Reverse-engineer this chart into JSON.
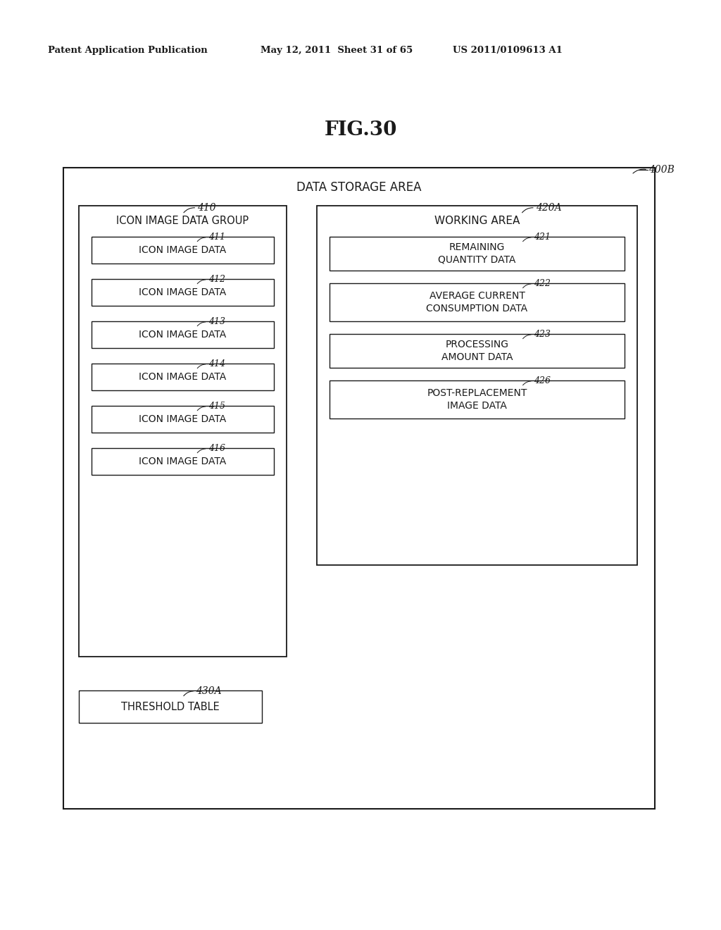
{
  "header_left": "Patent Application Publication",
  "header_mid": "May 12, 2011  Sheet 31 of 65",
  "header_right": "US 2011/0109613 A1",
  "fig_label": "FIG.30",
  "outer_box_label": "400B",
  "outer_box_title": "DATA STORAGE AREA",
  "left_group_label": "410",
  "left_group_title": "ICON IMAGE DATA GROUP",
  "left_boxes": [
    {
      "label": "411",
      "text": "ICON IMAGE DATA"
    },
    {
      "label": "412",
      "text": "ICON IMAGE DATA"
    },
    {
      "label": "413",
      "text": "ICON IMAGE DATA"
    },
    {
      "label": "414",
      "text": "ICON IMAGE DATA"
    },
    {
      "label": "415",
      "text": "ICON IMAGE DATA"
    },
    {
      "label": "416",
      "text": "ICON IMAGE DATA"
    }
  ],
  "right_group_label": "420A",
  "right_group_title": "WORKING AREA",
  "right_boxes": [
    {
      "label": "421",
      "text": "REMAINING\nQUANTITY DATA"
    },
    {
      "label": "422",
      "text": "AVERAGE CURRENT\nCONSUMPTION DATA"
    },
    {
      "label": "423",
      "text": "PROCESSING\nAMOUNT DATA"
    },
    {
      "label": "426",
      "text": "POST-REPLACEMENT\nIMAGE DATA"
    }
  ],
  "bottom_group_label": "430A",
  "bottom_box_text": "THRESHOLD TABLE",
  "bg_color": "#ffffff",
  "text_color": "#1a1a1a"
}
